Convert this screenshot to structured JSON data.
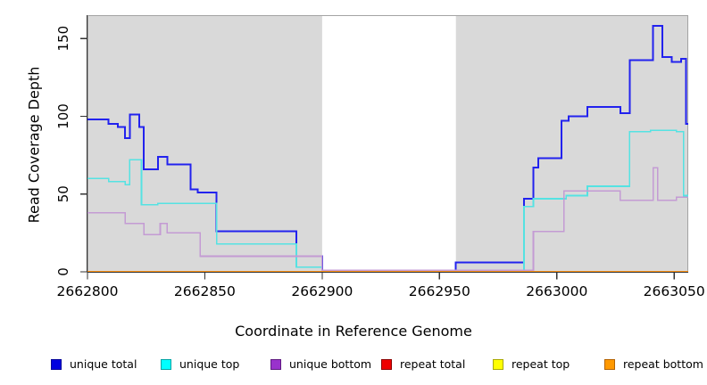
{
  "figure": {
    "x_axis_label": "Coordinate in Reference Genome",
    "y_axis_label": "Read Coverage Depth"
  },
  "chart_data": {
    "type": "line",
    "subtype": "step",
    "title": "",
    "xlabel": "Coordinate in Reference Genome",
    "ylabel": "Read Coverage Depth",
    "xlim": [
      2662800,
      2663056
    ],
    "ylim": [
      0,
      165
    ],
    "x_ticks": [
      2662800,
      2662850,
      2662900,
      2662950,
      2663000,
      2663050
    ],
    "y_ticks": [
      0,
      50,
      100,
      150
    ],
    "grid": false,
    "panel_color": "#d9d9d9",
    "panel_border_color": "#a3a3a3",
    "axis_color": "#333333",
    "no_data_band": {
      "x_start": 2662900,
      "x_end": 2662957,
      "color": "#ffffff"
    },
    "series": [
      {
        "name": "unique total",
        "color": "#2222ee",
        "line_width": 2,
        "points": [
          [
            2662800,
            98
          ],
          [
            2662809,
            95
          ],
          [
            2662813,
            93
          ],
          [
            2662816,
            86
          ],
          [
            2662818,
            101
          ],
          [
            2662822,
            93
          ],
          [
            2662824,
            66
          ],
          [
            2662830,
            74
          ],
          [
            2662834,
            69
          ],
          [
            2662844,
            53
          ],
          [
            2662847,
            51
          ],
          [
            2662855,
            26
          ],
          [
            2662889,
            10
          ],
          [
            2662900,
            1
          ],
          [
            2662957,
            6
          ],
          [
            2662986,
            47
          ],
          [
            2662990,
            67
          ],
          [
            2662992,
            73
          ],
          [
            2663002,
            97
          ],
          [
            2663005,
            100
          ],
          [
            2663013,
            106
          ],
          [
            2663027,
            102
          ],
          [
            2663031,
            136
          ],
          [
            2663041,
            158
          ],
          [
            2663045,
            138
          ],
          [
            2663049,
            135
          ],
          [
            2663053,
            137
          ],
          [
            2663055,
            95
          ]
        ]
      },
      {
        "name": "unique top",
        "color": "#55e2e2",
        "line_width": 1.6,
        "points": [
          [
            2662800,
            60
          ],
          [
            2662809,
            58
          ],
          [
            2662816,
            56
          ],
          [
            2662818,
            72
          ],
          [
            2662823,
            43
          ],
          [
            2662830,
            44
          ],
          [
            2662855,
            18
          ],
          [
            2662889,
            3
          ],
          [
            2662900,
            0
          ],
          [
            2662957,
            1
          ],
          [
            2662986,
            42
          ],
          [
            2662990,
            47
          ],
          [
            2663004,
            49
          ],
          [
            2663013,
            55
          ],
          [
            2663031,
            90
          ],
          [
            2663040,
            91
          ],
          [
            2663051,
            90
          ],
          [
            2663054,
            49
          ]
        ]
      },
      {
        "name": "unique bottom",
        "color": "#c49bd4",
        "line_width": 1.6,
        "points": [
          [
            2662800,
            38
          ],
          [
            2662816,
            31
          ],
          [
            2662824,
            24
          ],
          [
            2662831,
            31
          ],
          [
            2662834,
            25
          ],
          [
            2662848,
            10
          ],
          [
            2662900,
            1
          ],
          [
            2662990,
            26
          ],
          [
            2663003,
            52
          ],
          [
            2663027,
            46
          ],
          [
            2663041,
            67
          ],
          [
            2663043,
            46
          ],
          [
            2663051,
            48
          ]
        ]
      },
      {
        "name": "repeat total",
        "color": "#dd0000",
        "line_width": 1.6,
        "points": [
          [
            2662800,
            0
          ]
        ]
      },
      {
        "name": "repeat top",
        "color": "#ffff00",
        "line_width": 1.6,
        "points": [
          [
            2662800,
            0
          ]
        ]
      },
      {
        "name": "repeat bottom",
        "color": "#ff9415",
        "line_width": 1.8,
        "points": [
          [
            2662800,
            0
          ]
        ]
      }
    ],
    "legend": {
      "position": "bottom",
      "items": [
        {
          "label": "unique total",
          "color": "#0000e0",
          "border_color": "#000099"
        },
        {
          "label": "unique top",
          "color": "#00ffff",
          "border_color": "#00a3a3"
        },
        {
          "label": "unique bottom",
          "color": "#9932cc",
          "border_color": "#5e1a80"
        },
        {
          "label": "repeat total",
          "color": "#ee0000",
          "border_color": "#8b0000"
        },
        {
          "label": "repeat top",
          "color": "#ffff00",
          "border_color": "#a8a800"
        },
        {
          "label": "repeat bottom",
          "color": "#ff9900",
          "border_color": "#b36200"
        }
      ]
    }
  }
}
